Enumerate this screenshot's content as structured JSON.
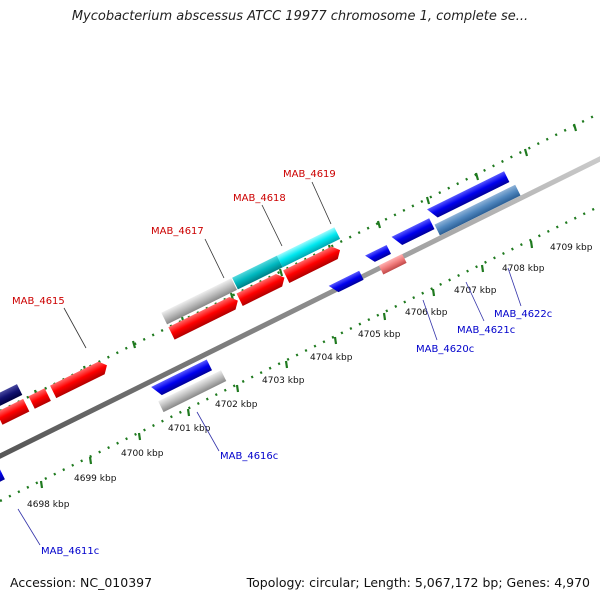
{
  "header": {
    "title": "Mycobacterium abscessus ATCC 19977 chromosome 1, complete se..."
  },
  "footer": {
    "accession": "Accession: NC_010397",
    "summary": "Topology: circular; Length: 5,067,172 bp; Genes: 4,970"
  },
  "colors": {
    "forward_cds": "#ff0000",
    "reverse_cds": "#0000ff",
    "forward_label": "#cc0000",
    "reverse_label": "#0000cc",
    "backbone": "#888888",
    "tick": "#1f7a1f"
  },
  "kbp_ticks": [
    "4698 kbp",
    "4699 kbp",
    "4700 kbp",
    "4701 kbp",
    "4702 kbp",
    "4703 kbp",
    "4704 kbp",
    "4705 kbp",
    "4706 kbp",
    "4707 kbp",
    "4708 kbp",
    "4709 kbp"
  ],
  "forward_gene_labels": [
    "MAB_4615",
    "MAB_4617",
    "MAB_4618",
    "MAB_4619"
  ],
  "reverse_gene_labels": [
    "MAB_4611c",
    "MAB_4616c",
    "MAB_4620c",
    "MAB_4621c",
    "MAB_4622c"
  ]
}
